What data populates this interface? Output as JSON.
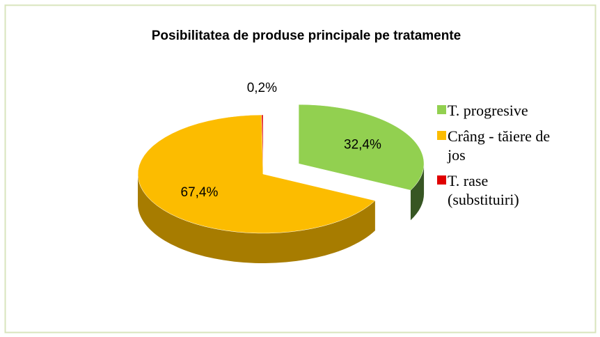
{
  "chart_data": {
    "type": "pie",
    "title": "Posibilitatea de produse principale pe tratamente",
    "categories": [
      "T. progresive",
      "Crâng - tăiere de jos",
      "T. rase (substituiri)"
    ],
    "values": [
      32.4,
      67.4,
      0.2
    ],
    "value_labels": [
      "32,4%",
      "67,4%",
      "0,2%"
    ],
    "colors": [
      "#92d050",
      "#fcbc00",
      "#e00000"
    ],
    "side_colors": [
      "#375623",
      "#a77c00",
      "#8b0000"
    ],
    "legend": "right"
  }
}
